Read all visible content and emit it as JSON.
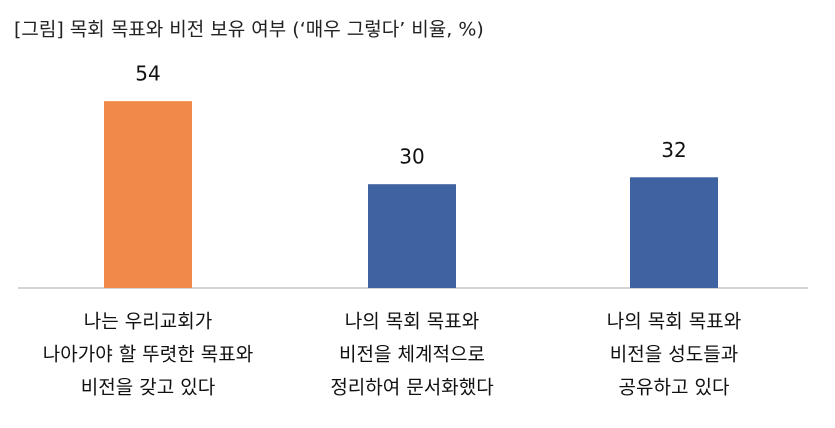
{
  "chart_data": {
    "type": "bar",
    "title": "[그림] 목회 목표와 비전 보유 여부 (‘매우 그렇다’ 비율, %)",
    "categories": [
      [
        "나는 우리교회가",
        "나아가야 할 뚜렷한 목표와",
        "비전을 갖고 있다"
      ],
      [
        "나의 목회 목표와",
        "비전을 체계적으로",
        "정리하여 문서화했다"
      ],
      [
        "나의 목회 목표와",
        "비전을 성도들과",
        "공유하고 있다"
      ]
    ],
    "values": [
      54,
      30,
      32
    ],
    "colors": [
      "#f0894a",
      "#3f62a0",
      "#3f62a0"
    ]
  }
}
